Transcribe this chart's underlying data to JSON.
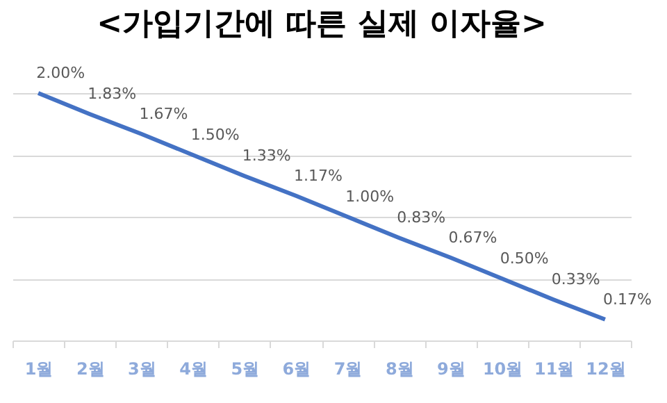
{
  "chart_data": {
    "type": "line",
    "title": "<가입기간에 따른 실제 이자율>",
    "categories": [
      "1월",
      "2월",
      "3월",
      "4월",
      "5월",
      "6월",
      "7월",
      "8월",
      "9월",
      "10월",
      "11월",
      "12월"
    ],
    "series": [
      {
        "color": "#4472c4",
        "values": [
          2.0,
          1.83,
          1.67,
          1.5,
          1.33,
          1.17,
          1.0,
          0.83,
          0.67,
          0.5,
          0.33,
          0.17
        ],
        "value_labels": [
          "2.00%",
          "1.83%",
          "1.67%",
          "1.50%",
          "1.33%",
          "1.17%",
          "1.00%",
          "0.83%",
          "0.67%",
          "0.50%",
          "0.33%",
          "0.17%"
        ]
      }
    ],
    "ylim": [
      0,
      2
    ],
    "yticks": [
      0,
      0.5,
      1,
      1.5,
      2
    ],
    "grid": "y",
    "tick_labels": "x",
    "legend": false,
    "marker": "none",
    "line_style": "solid"
  }
}
